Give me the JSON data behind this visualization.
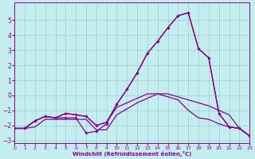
{
  "xlabel": "Windchill (Refroidissement éolien,°C)",
  "xlim": [
    0,
    23
  ],
  "ylim": [
    -3.2,
    6.2
  ],
  "yticks": [
    -3,
    -2,
    -1,
    0,
    1,
    2,
    3,
    4,
    5
  ],
  "xticks": [
    0,
    1,
    2,
    3,
    4,
    5,
    6,
    7,
    8,
    9,
    10,
    11,
    12,
    13,
    14,
    15,
    16,
    17,
    18,
    19,
    20,
    21,
    22,
    23
  ],
  "background_color": "#c4edf0",
  "line_color": "#880088",
  "grid_color": "#9ecece",
  "line1_x": [
    0,
    1,
    2,
    3,
    4,
    5,
    6,
    7,
    8,
    9,
    10,
    11,
    12,
    13,
    14,
    15,
    16,
    17,
    18,
    19,
    20,
    21,
    22,
    23
  ],
  "line1_y": [
    -2.2,
    -2.2,
    -1.7,
    -1.4,
    -1.5,
    -1.2,
    -1.3,
    -1.4,
    -2.0,
    -1.8,
    -0.8,
    -0.5,
    -0.2,
    0.1,
    0.1,
    -0.1,
    -0.3,
    -1.0,
    -1.5,
    -1.6,
    -1.9,
    -2.1,
    -2.2,
    -2.7
  ],
  "line2_x": [
    0,
    1,
    2,
    3,
    4,
    5,
    6,
    7,
    8,
    9,
    10,
    11,
    12,
    13,
    14,
    15,
    16,
    17,
    18,
    19,
    20,
    21,
    22,
    23
  ],
  "line2_y": [
    -2.2,
    -2.2,
    -1.7,
    -1.4,
    -1.5,
    -1.2,
    -1.3,
    -1.4,
    -2.0,
    -1.8,
    -0.6,
    0.4,
    1.5,
    2.8,
    3.6,
    4.5,
    5.3,
    5.5,
    3.1,
    2.5,
    -1.2,
    -2.1,
    -2.2,
    -2.7
  ],
  "line3_x": [
    0,
    1,
    2,
    3,
    4,
    5,
    6,
    7,
    8,
    9,
    10,
    11,
    12,
    13,
    14,
    15,
    16,
    17,
    18,
    19,
    20,
    21,
    22,
    23
  ],
  "line3_y": [
    -2.2,
    -2.2,
    -1.7,
    -1.4,
    -1.5,
    -1.5,
    -1.5,
    -2.5,
    -2.4,
    -1.9,
    -0.6,
    0.4,
    1.5,
    2.8,
    3.6,
    4.5,
    5.3,
    5.5,
    3.1,
    2.5,
    -1.2,
    -2.1,
    -2.2,
    -2.7
  ],
  "line4_x": [
    0,
    1,
    2,
    3,
    4,
    5,
    6,
    7,
    8,
    9,
    10,
    11,
    12,
    13,
    14,
    15,
    16,
    17,
    18,
    19,
    20,
    21,
    22,
    23
  ],
  "line4_y": [
    -2.2,
    -2.2,
    -2.1,
    -1.6,
    -1.6,
    -1.6,
    -1.6,
    -1.6,
    -2.3,
    -2.3,
    -1.3,
    -0.9,
    -0.5,
    -0.2,
    0.1,
    0.1,
    -0.1,
    -0.3,
    -0.5,
    -0.7,
    -1.0,
    -1.3,
    -2.2,
    -2.7
  ]
}
